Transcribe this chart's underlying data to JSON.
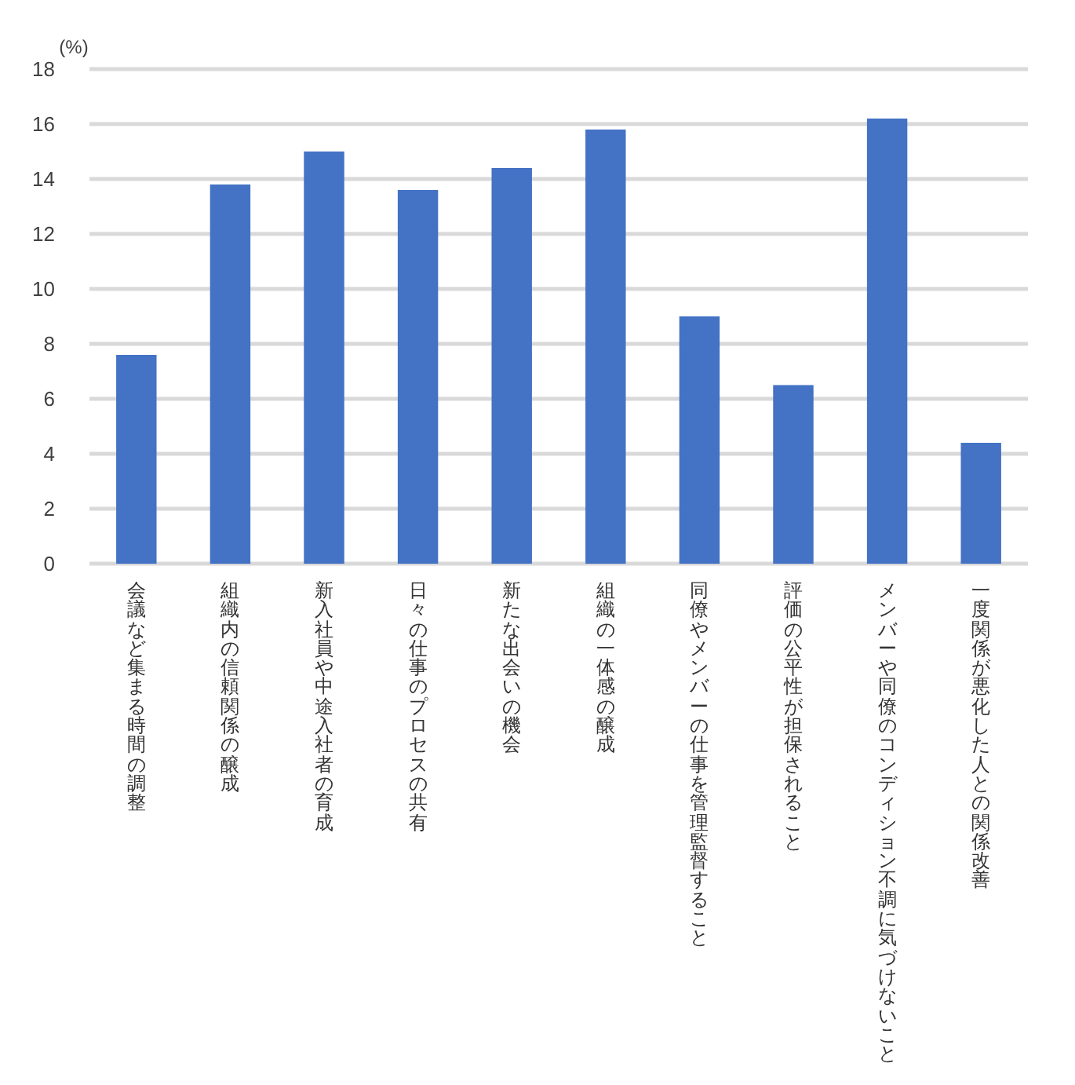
{
  "chart_data": {
    "type": "bar",
    "ylabel": "(%)",
    "categories": [
      "会議など集まる時間の調整",
      "組織内の信頼関係の醸成",
      "新入社員や中途入社者の育成",
      "日々の仕事のプロセスの共有",
      "新たな出会いの機会",
      "組織の一体感の醸成",
      "同僚やメンバーの仕事を管理監督すること",
      "評価の公平性が担保されること",
      "メンバーや同僚のコンディション不調に気づけないこと",
      "一度関係が悪化した人との関係改善"
    ],
    "values": [
      7.6,
      13.8,
      15.0,
      13.6,
      14.4,
      15.8,
      9.0,
      6.5,
      16.2,
      4.4
    ],
    "color": "#4472c4",
    "ylim": [
      0,
      18
    ],
    "yticks": [
      0,
      2,
      4,
      6,
      8,
      10,
      12,
      14,
      16,
      18
    ],
    "grid": "y"
  }
}
